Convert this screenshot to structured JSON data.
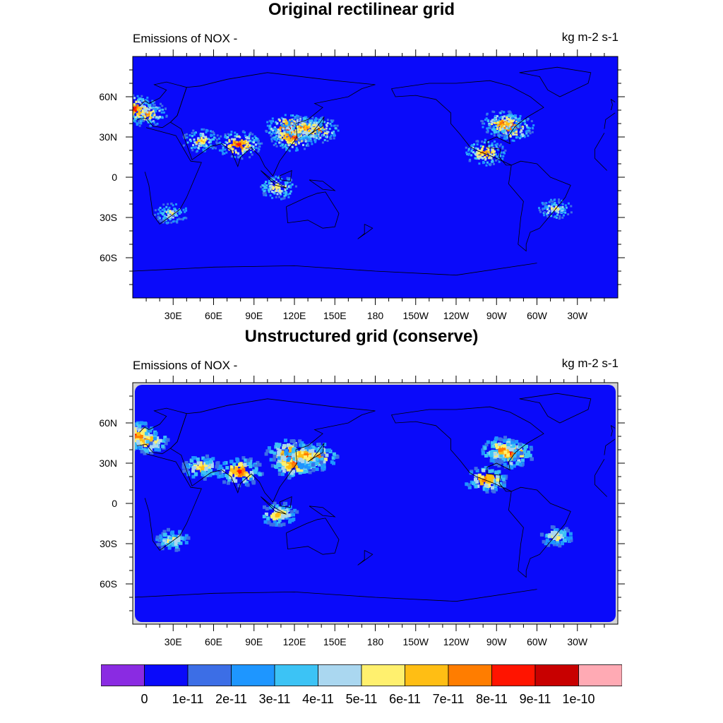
{
  "figure": {
    "panels": [
      {
        "title": "Original rectilinear grid",
        "left_string": "Emissions of NOX -",
        "right_string": "kg m-2 s-1",
        "style": "rectilinear"
      },
      {
        "title": "Unstructured grid (conserve)",
        "left_string": "Emissions of NOX -",
        "right_string": "kg m-2 s-1",
        "style": "conserve"
      }
    ],
    "lat_tick_labels": [
      "60N",
      "30N",
      "0",
      "30S",
      "60S"
    ],
    "lon_tick_labels": [
      "30E",
      "60E",
      "90E",
      "120E",
      "150E",
      "180",
      "150W",
      "120W",
      "90W",
      "60W",
      "30W"
    ],
    "colorbar": {
      "labels": [
        "0",
        "1e-11",
        "2e-11",
        "3e-11",
        "4e-11",
        "5e-11",
        "6e-11",
        "7e-11",
        "8e-11",
        "9e-11",
        "1e-10"
      ],
      "colors": [
        "#8a2be2",
        "#0a0afa",
        "#3c6ee6",
        "#1e96ff",
        "#3cc3f5",
        "#aad7f0",
        "#fff06e",
        "#ffbe14",
        "#ff7d00",
        "#ff1400",
        "#c80000",
        "#ffaab4"
      ]
    },
    "ocean_color": "#0a0afa",
    "missing_color": "#d3d3d3",
    "hotspots": [
      {
        "region": "europe",
        "lon": 10,
        "lat": 48,
        "intensity": 7
      },
      {
        "region": "europe-uk",
        "lon": 0,
        "lat": 52,
        "intensity": 8
      },
      {
        "region": "india",
        "lon": 78,
        "lat": 25,
        "intensity": 8
      },
      {
        "region": "china-north",
        "lon": 116,
        "lat": 37,
        "intensity": 9
      },
      {
        "region": "china-east",
        "lon": 118,
        "lat": 31,
        "intensity": 8
      },
      {
        "region": "japan",
        "lon": 137,
        "lat": 36,
        "intensity": 7
      },
      {
        "region": "korea",
        "lon": 127,
        "lat": 37,
        "intensity": 7
      },
      {
        "region": "us-east",
        "lon": -80,
        "lat": 38,
        "intensity": 8
      },
      {
        "region": "us-midwest",
        "lon": -87,
        "lat": 41,
        "intensity": 7
      },
      {
        "region": "mexico",
        "lon": -99,
        "lat": 19,
        "intensity": 7
      },
      {
        "region": "indonesia",
        "lon": 107,
        "lat": -7,
        "intensity": 6
      },
      {
        "region": "persian-gulf",
        "lon": 50,
        "lat": 28,
        "intensity": 6
      },
      {
        "region": "brazil",
        "lon": -47,
        "lat": -23,
        "intensity": 5
      },
      {
        "region": "south-africa",
        "lon": 28,
        "lat": -26,
        "intensity": 5
      }
    ]
  }
}
